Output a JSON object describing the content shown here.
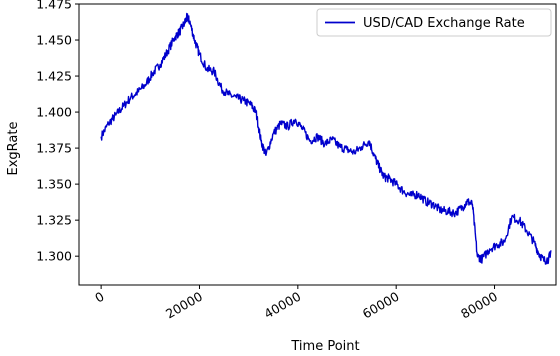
{
  "chart_data": {
    "type": "line",
    "title": "",
    "xlabel": "Time Point",
    "ylabel": "ExgRate",
    "xlim": [
      -4500,
      92500
    ],
    "ylim": [
      1.28,
      1.475
    ],
    "xticks": [
      0,
      20000,
      40000,
      60000,
      80000
    ],
    "yticks": [
      1.3,
      1.325,
      1.35,
      1.375,
      1.4,
      1.425,
      1.45,
      1.475
    ],
    "xtick_labels": [
      "0",
      "20000",
      "40000",
      "60000",
      "80000"
    ],
    "ytick_labels": [
      "1.300",
      "1.325",
      "1.350",
      "1.375",
      "1.400",
      "1.425",
      "1.450",
      "1.475"
    ],
    "legend_position": "top-right",
    "grid": false,
    "series": [
      {
        "name": "USD/CAD Exchange Rate",
        "color": "#0000cc",
        "x": [
          0,
          1500,
          3000,
          4500,
          6000,
          7500,
          9000,
          10500,
          12000,
          13500,
          15000,
          16000,
          17000,
          17500,
          18000,
          19000,
          20000,
          21500,
          23000,
          24500,
          26000,
          27500,
          29000,
          30500,
          31500,
          32500,
          33500,
          35000,
          36500,
          38000,
          39500,
          41000,
          42500,
          44000,
          45500,
          47000,
          48500,
          50000,
          51500,
          53000,
          54500,
          55500,
          56500,
          57500,
          58500,
          60000,
          61500,
          63000,
          64500,
          66000,
          67500,
          69000,
          70500,
          72000,
          73500,
          74500,
          75500,
          76500,
          77500,
          79000,
          80500,
          82000,
          83500,
          85000,
          86500,
          88000,
          89000,
          90000,
          91000,
          91500
        ],
        "y": [
          1.383,
          1.392,
          1.398,
          1.404,
          1.41,
          1.414,
          1.419,
          1.427,
          1.433,
          1.442,
          1.452,
          1.456,
          1.462,
          1.466,
          1.463,
          1.45,
          1.44,
          1.43,
          1.428,
          1.416,
          1.412,
          1.41,
          1.408,
          1.405,
          1.4,
          1.38,
          1.37,
          1.385,
          1.392,
          1.39,
          1.395,
          1.388,
          1.38,
          1.383,
          1.378,
          1.381,
          1.376,
          1.374,
          1.372,
          1.376,
          1.38,
          1.37,
          1.362,
          1.355,
          1.354,
          1.35,
          1.345,
          1.342,
          1.343,
          1.338,
          1.336,
          1.332,
          1.331,
          1.33,
          1.334,
          1.338,
          1.336,
          1.3,
          1.298,
          1.305,
          1.308,
          1.31,
          1.327,
          1.325,
          1.318,
          1.31,
          1.302,
          1.297,
          1.298,
          1.304
        ]
      }
    ]
  }
}
